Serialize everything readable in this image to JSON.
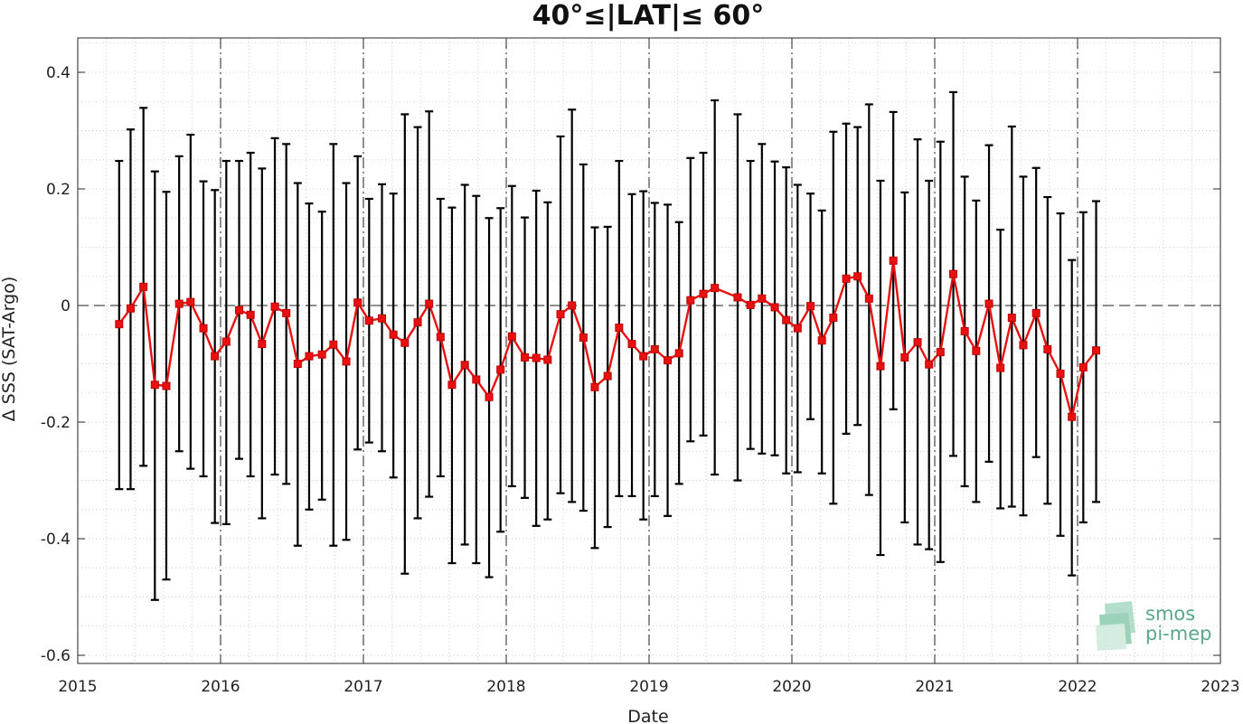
{
  "chart_data": {
    "type": "line",
    "title": "40°≤|LAT|≤ 60°",
    "xlabel": "Date",
    "ylabel": "Δ SSS (SAT-Argo)",
    "xlim": [
      2015,
      2023
    ],
    "ylim": [
      -0.62,
      0.46
    ],
    "x_ticks": [
      2015,
      2016,
      2017,
      2018,
      2019,
      2020,
      2021,
      2022,
      2023
    ],
    "x_tick_labels": [
      "2015",
      "2016",
      "2017",
      "2018",
      "2019",
      "2020",
      "2021",
      "2022",
      "2023"
    ],
    "y_ticks": [
      0.4,
      0.2,
      0,
      -0.2,
      -0.4,
      -0.6
    ],
    "y_tick_labels": [
      "0.4",
      "0.2",
      "0",
      "-0.2",
      "-0.4",
      "-0.6"
    ],
    "grid": "dotted minor",
    "zero_line": "dashed",
    "year_lines": "dash-dot",
    "series": [
      {
        "color": "#e81010",
        "marker": "square",
        "x": [
          2015.29,
          2015.37,
          2015.46,
          2015.54,
          2015.62,
          2015.71,
          2015.79,
          2015.88,
          2015.96,
          2016.04,
          2016.13,
          2016.21,
          2016.29,
          2016.38,
          2016.46,
          2016.54,
          2016.62,
          2016.71,
          2016.79,
          2016.88,
          2016.96,
          2017.04,
          2017.13,
          2017.21,
          2017.29,
          2017.38,
          2017.46,
          2017.54,
          2017.62,
          2017.71,
          2017.79,
          2017.88,
          2017.96,
          2018.04,
          2018.13,
          2018.21,
          2018.29,
          2018.38,
          2018.46,
          2018.54,
          2018.62,
          2018.71,
          2018.79,
          2018.88,
          2018.96,
          2019.04,
          2019.13,
          2019.21,
          2019.29,
          2019.38,
          2019.46,
          2019.62,
          2019.71,
          2019.79,
          2019.88,
          2019.96,
          2020.04,
          2020.13,
          2020.21,
          2020.29,
          2020.38,
          2020.46,
          2020.54,
          2020.62,
          2020.71,
          2020.79,
          2020.88,
          2020.96,
          2021.04,
          2021.13,
          2021.21,
          2021.29,
          2021.38,
          2021.46,
          2021.54,
          2021.62,
          2021.71,
          2021.79,
          2021.88,
          2021.96,
          2022.04,
          2022.13
        ],
        "y": [
          -0.032,
          -0.005,
          0.032,
          -0.136,
          -0.138,
          0.003,
          0.006,
          -0.039,
          -0.087,
          -0.062,
          -0.008,
          -0.016,
          -0.066,
          -0.002,
          -0.013,
          -0.1,
          -0.087,
          -0.084,
          -0.067,
          -0.096,
          0.005,
          -0.026,
          -0.022,
          -0.05,
          -0.064,
          -0.029,
          0.003,
          -0.054,
          -0.136,
          -0.102,
          -0.127,
          -0.157,
          -0.11,
          -0.053,
          -0.089,
          -0.09,
          -0.093,
          -0.015,
          0.0,
          -0.055,
          -0.14,
          -0.121,
          -0.038,
          -0.066,
          -0.087,
          -0.075,
          -0.094,
          -0.082,
          0.009,
          0.02,
          0.03,
          0.014,
          0.001,
          0.012,
          -0.003,
          -0.025,
          -0.039,
          -0.001,
          -0.06,
          -0.021,
          0.046,
          0.05,
          0.012,
          -0.104,
          0.077,
          -0.089,
          -0.063,
          -0.101,
          -0.08,
          0.054,
          -0.044,
          -0.078,
          0.003,
          -0.107,
          -0.021,
          -0.068,
          -0.013,
          -0.075,
          -0.117,
          -0.191,
          -0.106,
          -0.077
        ],
        "err_low": [
          -0.315,
          -0.315,
          -0.275,
          -0.505,
          -0.47,
          -0.25,
          -0.28,
          -0.293,
          -0.373,
          -0.375,
          -0.263,
          -0.293,
          -0.365,
          -0.29,
          -0.306,
          -0.412,
          -0.35,
          -0.333,
          -0.412,
          -0.402,
          -0.247,
          -0.235,
          -0.25,
          -0.295,
          -0.46,
          -0.365,
          -0.328,
          -0.293,
          -0.442,
          -0.41,
          -0.442,
          -0.466,
          -0.388,
          -0.31,
          -0.33,
          -0.378,
          -0.367,
          -0.322,
          -0.337,
          -0.352,
          -0.416,
          -0.38,
          -0.327,
          -0.327,
          -0.367,
          -0.327,
          -0.361,
          -0.306,
          -0.233,
          -0.223,
          -0.29,
          -0.3,
          -0.246,
          -0.254,
          -0.257,
          -0.288,
          -0.286,
          -0.195,
          -0.288,
          -0.34,
          -0.22,
          -0.205,
          -0.325,
          -0.428,
          -0.178,
          -0.372,
          -0.41,
          -0.418,
          -0.44,
          -0.258,
          -0.31,
          -0.337,
          -0.268,
          -0.348,
          -0.345,
          -0.36,
          -0.26,
          -0.34,
          -0.395,
          -0.463,
          -0.372,
          -0.337
        ],
        "err_high": [
          0.248,
          0.302,
          0.339,
          0.23,
          0.195,
          0.256,
          0.293,
          0.213,
          0.198,
          0.248,
          0.248,
          0.262,
          0.235,
          0.287,
          0.277,
          0.21,
          0.175,
          0.161,
          0.277,
          0.21,
          0.256,
          0.183,
          0.208,
          0.192,
          0.328,
          0.306,
          0.333,
          0.183,
          0.168,
          0.207,
          0.188,
          0.15,
          0.167,
          0.205,
          0.151,
          0.197,
          0.177,
          0.29,
          0.336,
          0.242,
          0.134,
          0.135,
          0.248,
          0.191,
          0.196,
          0.176,
          0.173,
          0.143,
          0.253,
          0.262,
          0.352,
          0.328,
          0.248,
          0.277,
          0.247,
          0.237,
          0.207,
          0.192,
          0.163,
          0.298,
          0.312,
          0.306,
          0.345,
          0.214,
          0.332,
          0.194,
          0.285,
          0.214,
          0.281,
          0.366,
          0.221,
          0.18,
          0.275,
          0.13,
          0.307,
          0.221,
          0.236,
          0.186,
          0.158,
          0.078,
          0.16,
          0.179
        ]
      }
    ]
  },
  "logo": {
    "line1": "smos",
    "line2": "pi-mep",
    "color": "#5aa889"
  }
}
